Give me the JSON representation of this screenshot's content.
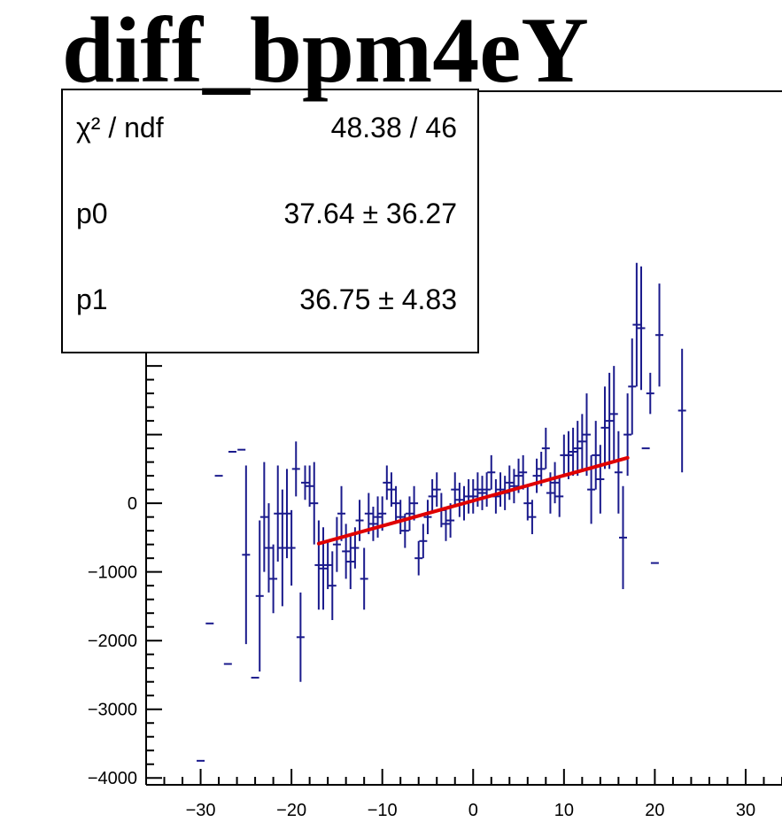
{
  "chart_data": {
    "type": "scatter",
    "title": "diff_bpm4eY",
    "xlabel": "",
    "ylabel": "",
    "xlim": [
      -36,
      34
    ],
    "ylim": [
      -4100,
      6000
    ],
    "x_ticks": [
      -30,
      -20,
      -10,
      0,
      10,
      20,
      30
    ],
    "x_tick_labels": [
      "−30",
      "−20",
      "−10",
      "0",
      "10",
      "20",
      "30"
    ],
    "y_ticks": [
      0,
      -1000,
      -2000,
      -3000,
      -4000
    ],
    "y_tick_labels": [
      "0",
      "−1000",
      "−2000",
      "−3000",
      "−4000"
    ],
    "colors": {
      "points": "#1a1a8c",
      "fit": "#e00000",
      "frame": "#000000"
    },
    "stats_box": {
      "rows": [
        {
          "name": "χ² / ndf",
          "value": "48.38 / 46"
        },
        {
          "name": "p0",
          "value": "37.64 ± 36.27"
        },
        {
          "name": "p1",
          "value": "36.75 ± 4.83"
        }
      ]
    },
    "fit": {
      "type": "line",
      "p0": 37.64,
      "p1": 36.75,
      "x_range": [
        -17,
        17
      ]
    },
    "points": [
      {
        "x": -30,
        "y": -3750,
        "err": 0
      },
      {
        "x": -29,
        "y": -1750,
        "err": 0
      },
      {
        "x": -28,
        "y": 400,
        "err": 0
      },
      {
        "x": -27,
        "y": -2340,
        "err": 0
      },
      {
        "x": -26.5,
        "y": 750,
        "err": 0
      },
      {
        "x": -25.5,
        "y": 780,
        "err": 0
      },
      {
        "x": -25,
        "y": -750,
        "err": 1300
      },
      {
        "x": -24,
        "y": -2540,
        "err": 0
      },
      {
        "x": -23.5,
        "y": -1350,
        "err": 1100
      },
      {
        "x": -23,
        "y": -200,
        "err": 800
      },
      {
        "x": -22.5,
        "y": -650,
        "err": 650
      },
      {
        "x": -22,
        "y": -1100,
        "err": 500
      },
      {
        "x": -21.5,
        "y": -150,
        "err": 700
      },
      {
        "x": -21,
        "y": -650,
        "err": 850
      },
      {
        "x": -20.5,
        "y": -150,
        "err": 650
      },
      {
        "x": -20,
        "y": -650,
        "err": 550
      },
      {
        "x": -19.5,
        "y": 500,
        "err": 400
      },
      {
        "x": -19,
        "y": -1950,
        "err": 650
      },
      {
        "x": -18.5,
        "y": 300,
        "err": 250
      },
      {
        "x": -18,
        "y": 250,
        "err": 300
      },
      {
        "x": -17.5,
        "y": 0,
        "err": 600
      },
      {
        "x": -17,
        "y": -900,
        "err": 650
      },
      {
        "x": -16.5,
        "y": -950,
        "err": 600
      },
      {
        "x": -16,
        "y": -900,
        "err": 350
      },
      {
        "x": -15.5,
        "y": -1200,
        "err": 500
      },
      {
        "x": -15,
        "y": -600,
        "err": 400
      },
      {
        "x": -14.5,
        "y": -150,
        "err": 400
      },
      {
        "x": -14,
        "y": -700,
        "err": 400
      },
      {
        "x": -13.5,
        "y": -850,
        "err": 400
      },
      {
        "x": -13,
        "y": -650,
        "err": 300
      },
      {
        "x": -12.5,
        "y": -250,
        "err": 300
      },
      {
        "x": -12,
        "y": -1100,
        "err": 450
      },
      {
        "x": -11.5,
        "y": -150,
        "err": 300
      },
      {
        "x": -11,
        "y": -300,
        "err": 250
      },
      {
        "x": -10.5,
        "y": -200,
        "err": 300
      },
      {
        "x": -10,
        "y": -150,
        "err": 250
      },
      {
        "x": -9.5,
        "y": 300,
        "err": 250
      },
      {
        "x": -9,
        "y": 200,
        "err": 250
      },
      {
        "x": -8.5,
        "y": 0,
        "err": 250
      },
      {
        "x": -8,
        "y": -200,
        "err": 250
      },
      {
        "x": -7.5,
        "y": -400,
        "err": 250
      },
      {
        "x": -7,
        "y": -150,
        "err": 250
      },
      {
        "x": -6.5,
        "y": 0,
        "err": 250
      },
      {
        "x": -6,
        "y": -800,
        "err": 250
      },
      {
        "x": -5.5,
        "y": -550,
        "err": 250
      },
      {
        "x": -5,
        "y": -200,
        "err": 250
      },
      {
        "x": -4.5,
        "y": 100,
        "err": 250
      },
      {
        "x": -4,
        "y": 200,
        "err": 250
      },
      {
        "x": -3.5,
        "y": -100,
        "err": 250
      },
      {
        "x": -3,
        "y": -300,
        "err": 250
      },
      {
        "x": -2.5,
        "y": -250,
        "err": 250
      },
      {
        "x": -2,
        "y": 200,
        "err": 250
      },
      {
        "x": -1.5,
        "y": 50,
        "err": 250
      },
      {
        "x": -1,
        "y": 0,
        "err": 250
      },
      {
        "x": -0.5,
        "y": 100,
        "err": 250
      },
      {
        "x": 0,
        "y": 100,
        "err": 250
      },
      {
        "x": 0.5,
        "y": 200,
        "err": 250
      },
      {
        "x": 1,
        "y": 150,
        "err": 250
      },
      {
        "x": 1.5,
        "y": 200,
        "err": 250
      },
      {
        "x": 2,
        "y": 450,
        "err": 250
      },
      {
        "x": 2.5,
        "y": 100,
        "err": 250
      },
      {
        "x": 3,
        "y": 200,
        "err": 250
      },
      {
        "x": 3.5,
        "y": 150,
        "err": 250
      },
      {
        "x": 4,
        "y": 300,
        "err": 250
      },
      {
        "x": 4.5,
        "y": 250,
        "err": 250
      },
      {
        "x": 5,
        "y": 400,
        "err": 250
      },
      {
        "x": 5.5,
        "y": 450,
        "err": 250
      },
      {
        "x": 6,
        "y": 0,
        "err": 250
      },
      {
        "x": 6.5,
        "y": -200,
        "err": 250
      },
      {
        "x": 7,
        "y": 400,
        "err": 250
      },
      {
        "x": 7.5,
        "y": 500,
        "err": 250
      },
      {
        "x": 8,
        "y": 800,
        "err": 300
      },
      {
        "x": 8.5,
        "y": 150,
        "err": 300
      },
      {
        "x": 9,
        "y": 300,
        "err": 300
      },
      {
        "x": 9.5,
        "y": 100,
        "err": 300
      },
      {
        "x": 10,
        "y": 700,
        "err": 300
      },
      {
        "x": 10.5,
        "y": 700,
        "err": 350
      },
      {
        "x": 11,
        "y": 750,
        "err": 350
      },
      {
        "x": 11.5,
        "y": 800,
        "err": 400
      },
      {
        "x": 12,
        "y": 900,
        "err": 400
      },
      {
        "x": 12.5,
        "y": 1000,
        "err": 600
      },
      {
        "x": 13,
        "y": 200,
        "err": 500
      },
      {
        "x": 13.5,
        "y": 700,
        "err": 500
      },
      {
        "x": 14,
        "y": 350,
        "err": 500
      },
      {
        "x": 14.5,
        "y": 1100,
        "err": 600
      },
      {
        "x": 15,
        "y": 1200,
        "err": 700
      },
      {
        "x": 15.5,
        "y": 1300,
        "err": 700
      },
      {
        "x": 16,
        "y": 450,
        "err": 600
      },
      {
        "x": 16.5,
        "y": -500,
        "err": 750
      },
      {
        "x": 17,
        "y": 1000,
        "err": 600
      },
      {
        "x": 17.5,
        "y": 1700,
        "err": 700
      },
      {
        "x": 18,
        "y": 2600,
        "err": 900
      },
      {
        "x": 18.5,
        "y": 2550,
        "err": 900
      },
      {
        "x": 19,
        "y": 800,
        "err": 0
      },
      {
        "x": 19.5,
        "y": 1600,
        "err": 300
      },
      {
        "x": 20,
        "y": -870,
        "err": 0
      },
      {
        "x": 20.5,
        "y": 2450,
        "err": 750
      },
      {
        "x": 23,
        "y": 1350,
        "err": 900
      }
    ]
  }
}
